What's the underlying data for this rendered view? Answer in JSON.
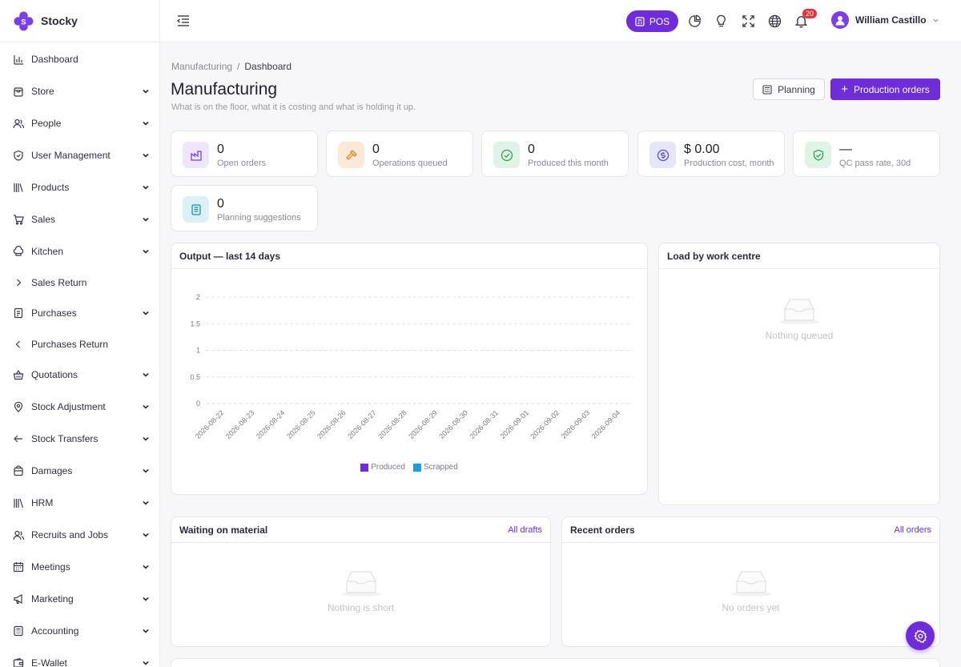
{
  "brand": {
    "name": "Stocky"
  },
  "sidebar": {
    "items": [
      {
        "label": "Dashboard",
        "icon": "bar-chart-icon",
        "chev": "none"
      },
      {
        "label": "Store",
        "icon": "store-icon",
        "chev": "down"
      },
      {
        "label": "People",
        "icon": "users-icon",
        "chev": "down"
      },
      {
        "label": "User Management",
        "icon": "shield-icon",
        "chev": "down"
      },
      {
        "label": "Products",
        "icon": "books-icon",
        "chev": "down"
      },
      {
        "label": "Sales",
        "icon": "cart-icon",
        "chev": "down"
      },
      {
        "label": "Kitchen",
        "icon": "chef-hat-icon",
        "chev": "down"
      },
      {
        "label": "Sales Return",
        "icon": "chevron-right-icon",
        "chev": "none"
      },
      {
        "label": "Purchases",
        "icon": "receipt-icon",
        "chev": "down"
      },
      {
        "label": "Purchases Return",
        "icon": "chevron-left-icon",
        "chev": "none"
      },
      {
        "label": "Quotations",
        "icon": "basket-icon",
        "chev": "down"
      },
      {
        "label": "Stock Adjustment",
        "icon": "map-pin-icon",
        "chev": "down"
      },
      {
        "label": "Stock Transfers",
        "icon": "arrow-left-icon",
        "chev": "down"
      },
      {
        "label": "Damages",
        "icon": "bag-icon",
        "chev": "down"
      },
      {
        "label": "HRM",
        "icon": "library-icon",
        "chev": "down"
      },
      {
        "label": "Recruits and Jobs",
        "icon": "user-plus-icon",
        "chev": "down"
      },
      {
        "label": "Meetings",
        "icon": "calendar-icon",
        "chev": "down"
      },
      {
        "label": "Marketing",
        "icon": "megaphone-icon",
        "chev": "down"
      },
      {
        "label": "Accounting",
        "icon": "calculator-icon",
        "chev": "down"
      },
      {
        "label": "E-Wallet",
        "icon": "wallet-icon",
        "chev": "down"
      }
    ]
  },
  "topbar": {
    "pos_label": "POS",
    "notifications_count": "20",
    "user_name": "William Castillo"
  },
  "breadcrumb": {
    "parent": "Manufacturing",
    "separator": "/",
    "current": "Dashboard"
  },
  "page": {
    "title": "Manufacturing",
    "subtitle": "What is on the floor, what it is costing and what is holding it up.",
    "planning_label": "Planning",
    "production_orders_label": "Production orders"
  },
  "stats": [
    {
      "value": "0",
      "label": "Open orders",
      "icon": "factory-icon",
      "bg": "#efe6fb",
      "fg": "#7b3fe4"
    },
    {
      "value": "0",
      "label": "Operations queued",
      "icon": "hammer-icon",
      "bg": "#fde9d9",
      "fg": "#e0822a"
    },
    {
      "value": "0",
      "label": "Produced this month",
      "icon": "check-circle-icon",
      "bg": "#e0f4e6",
      "fg": "#2f9e58"
    },
    {
      "value": "$ 0.00",
      "label": "Production cost, month",
      "icon": "dollar-circle-icon",
      "bg": "#e6e6fb",
      "fg": "#5a4ddb"
    },
    {
      "value": "—",
      "label": "QC pass rate, 30d",
      "icon": "shield-check-icon",
      "bg": "#e0f4e6",
      "fg": "#2f9e58"
    },
    {
      "value": "0",
      "label": "Planning suggestions",
      "icon": "clipboard-icon",
      "bg": "#dcf1f6",
      "fg": "#1f8fb0"
    }
  ],
  "output_card": {
    "title": "Output — last 14 days"
  },
  "load_card": {
    "title": "Load by work centre",
    "empty": "Nothing queued"
  },
  "waiting_card": {
    "title": "Waiting on material",
    "link": "All drafts",
    "empty": "Nothing is short"
  },
  "recent_card": {
    "title": "Recent orders",
    "link": "All orders",
    "empty": "No orders yet"
  },
  "chart_data": {
    "type": "bar",
    "categories": [
      "2026-08-22",
      "2026-08-23",
      "2026-08-24",
      "2026-08-25",
      "2026-08-26",
      "2026-08-27",
      "2026-08-28",
      "2026-08-29",
      "2026-08-30",
      "2026-08-31",
      "2026-09-01",
      "2026-09-02",
      "2026-09-03",
      "2026-09-04"
    ],
    "series": [
      {
        "name": "Produced",
        "values": [
          0,
          0,
          0,
          0,
          0,
          0,
          0,
          0,
          0,
          0,
          0,
          0,
          0,
          0
        ],
        "color": "#6f2dd9"
      },
      {
        "name": "Scrapped",
        "values": [
          0,
          0,
          0,
          0,
          0,
          0,
          0,
          0,
          0,
          0,
          0,
          0,
          0,
          0
        ],
        "color": "#1ea0d8"
      }
    ],
    "yticks": [
      "2",
      "1.5",
      "1",
      "0.5",
      "0"
    ],
    "ylim": [
      0,
      2
    ],
    "grid": true,
    "legend": "bottom"
  },
  "colors": {
    "accent": "#6f2dd9",
    "badge": "#e5323e"
  }
}
